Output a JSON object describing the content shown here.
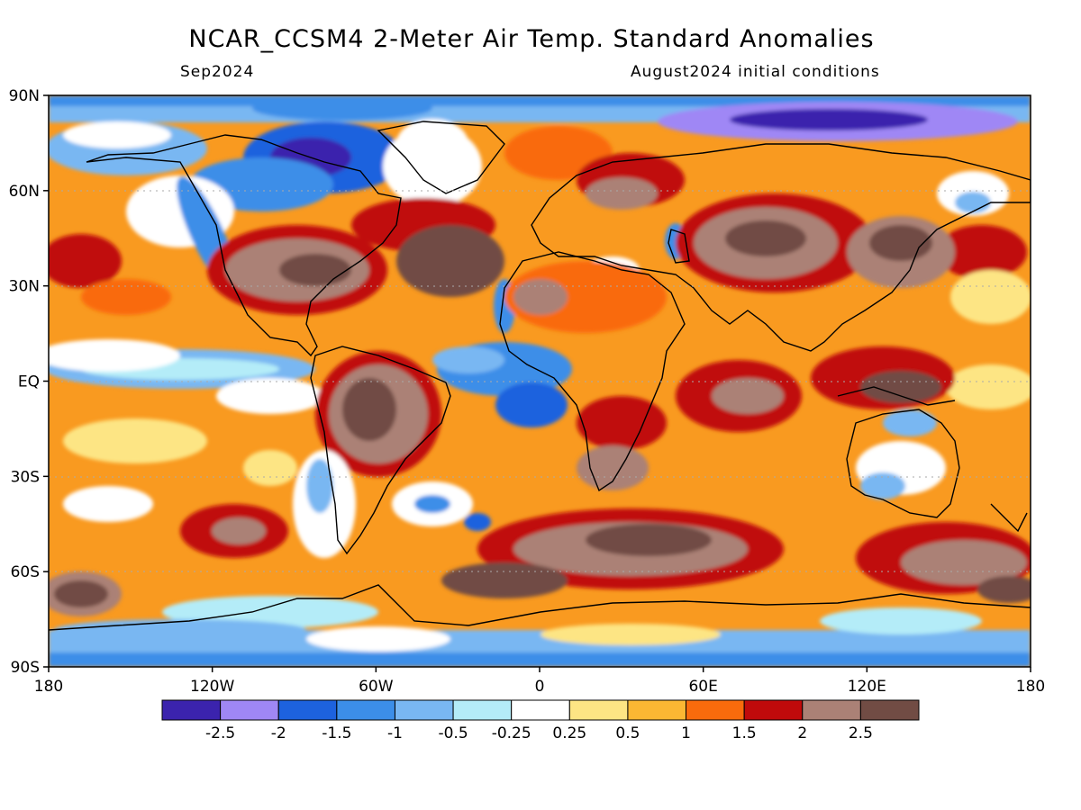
{
  "title": "NCAR_CCSM4 2-Meter Air Temp. Standard Anomalies",
  "subtitle_left": "Sep2024",
  "subtitle_right": "August2024 initial conditions",
  "lat_ticks": [
    "90N",
    "60N",
    "30N",
    "EQ",
    "30S",
    "60S",
    "90S"
  ],
  "lon_ticks": [
    "180",
    "120W",
    "60W",
    "0",
    "60E",
    "120E",
    "180"
  ],
  "colorbar": {
    "colors": [
      "#3b23ad",
      "#9f87f5",
      "#1d62de",
      "#3c8ee8",
      "#79b7f2",
      "#b4ecf8",
      "#ffffff",
      "#fde584",
      "#fbb733",
      "#f96b0c",
      "#c00a0b",
      "#ab8176",
      "#714c44"
    ],
    "labels": [
      "-2.5",
      "-2",
      "-1.5",
      "-1",
      "-0.5",
      "-0.25",
      "0.25",
      "0.5",
      "1",
      "1.5",
      "2",
      "2.5"
    ]
  },
  "colors": {
    "ocean_base": "#f99a20",
    "coast": "#000000",
    "grid": "#aaaaaa"
  }
}
